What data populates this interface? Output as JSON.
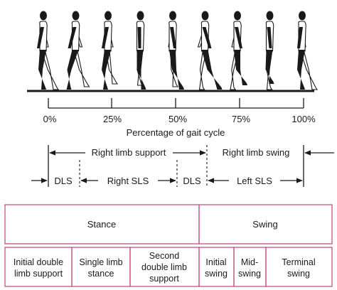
{
  "percent_ticks": [
    "0%",
    "25%",
    "50%",
    "75%",
    "100%"
  ],
  "axis_label": "Percentage of gait cycle",
  "limb_phases": {
    "right_support": "Right limb support",
    "right_swing": "Right limb swing"
  },
  "support_phases": {
    "dls_1": "DLS",
    "right_sls": "Right SLS",
    "dls_2": "DLS",
    "left_sls": "Left SLS"
  },
  "main_phases": {
    "stance": "Stance",
    "swing": "Swing"
  },
  "sub_phases": [
    [
      "Initial double",
      "limb support"
    ],
    [
      "Single limb",
      "stance"
    ],
    [
      "Second",
      "double limb",
      "support"
    ],
    [
      "Initial",
      "swing"
    ],
    [
      "Mid-",
      "swing"
    ],
    [
      "Terminal",
      "swing"
    ]
  ],
  "colors": {
    "box_border": "#c0437a",
    "ink": "#1a1a1a"
  },
  "figure_count": 9
}
